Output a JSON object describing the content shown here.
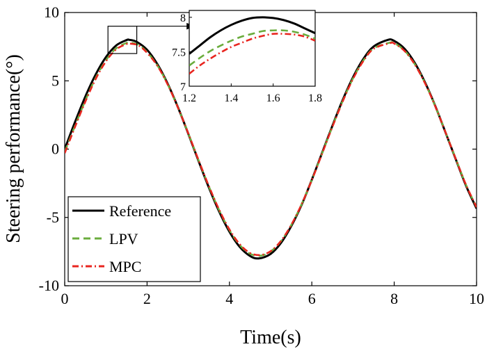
{
  "chart_data": {
    "type": "line",
    "title": "",
    "xlabel": "Time(s)",
    "ylabel": "Steering performance(°)",
    "xlim": [
      0,
      10
    ],
    "ylim": [
      -10,
      10
    ],
    "xticks": [
      "0",
      "2",
      "4",
      "6",
      "8",
      "10"
    ],
    "yticks": [
      "10",
      "5",
      "0",
      "-5",
      "-10"
    ],
    "grid": false,
    "legend_position": "bottom-left",
    "series": [
      {
        "name": "Reference",
        "color": "#000000",
        "style": "solid",
        "x": [
          0,
          0.25,
          0.5,
          0.75,
          1.0,
          1.25,
          1.5,
          1.57,
          1.75,
          2.0,
          2.25,
          2.5,
          2.75,
          3.0,
          3.25,
          3.5,
          3.75,
          4.0,
          4.25,
          4.5,
          4.71,
          5.0,
          5.25,
          5.5,
          5.75,
          6.0,
          6.25,
          6.5,
          6.75,
          7.0,
          7.25,
          7.5,
          7.85,
          8.0,
          8.25,
          8.5,
          8.75,
          9.0,
          9.25,
          9.5,
          9.75,
          10.0
        ],
        "y": [
          0,
          1.98,
          3.84,
          5.45,
          6.73,
          7.59,
          7.98,
          8.0,
          7.85,
          7.27,
          6.22,
          4.79,
          3.06,
          1.13,
          -0.87,
          -2.81,
          -4.57,
          -6.05,
          -7.16,
          -7.82,
          -8.0,
          -7.67,
          -6.87,
          -5.64,
          -4.09,
          -2.24,
          -0.27,
          1.71,
          3.6,
          5.26,
          6.59,
          7.51,
          8.0,
          7.92,
          7.35,
          6.31,
          4.88,
          3.14,
          1.19,
          -0.78,
          -2.72,
          -4.35
        ]
      },
      {
        "name": "LPV",
        "color": "#6aac3c",
        "style": "dashed",
        "x": [
          0,
          0.25,
          0.5,
          0.75,
          1.0,
          1.25,
          1.5,
          1.6,
          1.8,
          2.0,
          2.25,
          2.5,
          2.75,
          3.0,
          3.25,
          3.5,
          3.75,
          4.0,
          4.25,
          4.5,
          4.75,
          5.0,
          5.25,
          5.5,
          5.75,
          6.0,
          6.25,
          6.5,
          6.75,
          7.0,
          7.25,
          7.5,
          7.9,
          8.0,
          8.25,
          8.5,
          8.75,
          9.0,
          9.25,
          9.5,
          9.75,
          10.0
        ],
        "y": [
          -0.2,
          1.7,
          3.55,
          5.2,
          6.5,
          7.38,
          7.77,
          7.8,
          7.62,
          7.1,
          6.13,
          4.75,
          3.05,
          1.15,
          -0.82,
          -2.73,
          -4.47,
          -5.93,
          -7.02,
          -7.66,
          -7.8,
          -7.5,
          -6.74,
          -5.56,
          -4.05,
          -2.26,
          -0.31,
          1.66,
          3.53,
          5.18,
          6.48,
          7.38,
          7.8,
          7.77,
          7.22,
          6.22,
          4.83,
          3.13,
          1.21,
          -0.75,
          -2.66,
          -4.25
        ]
      },
      {
        "name": "MPC",
        "color": "#e8251f",
        "style": "dashdot",
        "x": [
          0,
          0.25,
          0.5,
          0.75,
          1.0,
          1.25,
          1.5,
          1.6,
          1.8,
          2.0,
          2.25,
          2.5,
          2.75,
          3.0,
          3.25,
          3.5,
          3.75,
          4.0,
          4.25,
          4.5,
          4.75,
          5.0,
          5.25,
          5.5,
          5.75,
          6.0,
          6.25,
          6.5,
          6.75,
          7.0,
          7.25,
          7.5,
          7.9,
          8.0,
          8.25,
          8.5,
          8.75,
          9.0,
          9.25,
          9.5,
          9.75,
          10.0
        ],
        "y": [
          -0.3,
          1.62,
          3.47,
          5.12,
          6.42,
          7.3,
          7.69,
          7.72,
          7.58,
          7.05,
          6.1,
          4.73,
          3.04,
          1.15,
          -0.8,
          -2.7,
          -4.43,
          -5.88,
          -6.96,
          -7.6,
          -7.75,
          -7.47,
          -6.72,
          -5.55,
          -4.05,
          -2.27,
          -0.33,
          1.63,
          3.49,
          5.14,
          6.44,
          7.34,
          7.76,
          7.73,
          7.19,
          6.2,
          4.81,
          3.12,
          1.2,
          -0.76,
          -2.66,
          -4.25
        ]
      }
    ],
    "inset": {
      "xlim": [
        1.2,
        1.8
      ],
      "ylim": [
        7,
        8.1
      ],
      "xticks": [
        "1.2",
        "1.4",
        "1.6",
        "1.8"
      ],
      "yticks": [
        "8",
        "7.5",
        "7"
      ],
      "series": [
        {
          "name": "Reference",
          "x": [
            1.2,
            1.25,
            1.3,
            1.35,
            1.4,
            1.45,
            1.5,
            1.55,
            1.6,
            1.65,
            1.7,
            1.75,
            1.8
          ],
          "y": [
            7.47,
            7.59,
            7.71,
            7.81,
            7.89,
            7.95,
            7.99,
            8.0,
            7.99,
            7.96,
            7.91,
            7.84,
            7.77
          ]
        },
        {
          "name": "LPV",
          "x": [
            1.2,
            1.25,
            1.3,
            1.35,
            1.4,
            1.45,
            1.5,
            1.55,
            1.6,
            1.65,
            1.7,
            1.75,
            1.8
          ],
          "y": [
            7.3,
            7.41,
            7.51,
            7.59,
            7.66,
            7.72,
            7.76,
            7.8,
            7.81,
            7.81,
            7.79,
            7.75,
            7.69
          ]
        },
        {
          "name": "MPC",
          "x": [
            1.2,
            1.25,
            1.3,
            1.35,
            1.4,
            1.45,
            1.5,
            1.55,
            1.6,
            1.65,
            1.7,
            1.75,
            1.8
          ],
          "y": [
            7.18,
            7.3,
            7.4,
            7.49,
            7.57,
            7.63,
            7.69,
            7.73,
            7.76,
            7.76,
            7.75,
            7.72,
            7.66
          ]
        }
      ]
    }
  }
}
